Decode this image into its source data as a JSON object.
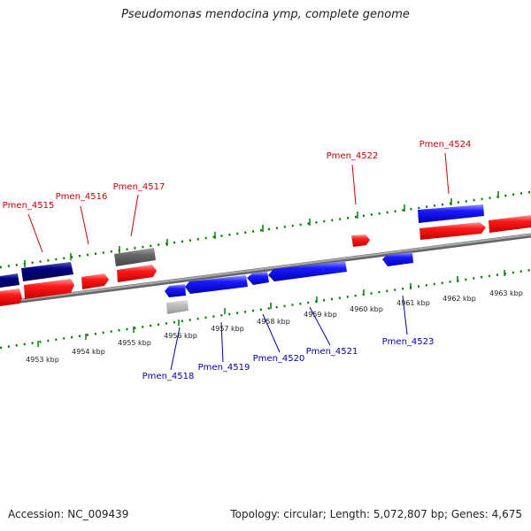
{
  "title": "Pseudomonas mendocina ymp, complete genome",
  "footer": {
    "accession_label": "Accession:",
    "accession": "NC_009439",
    "topology_label": "Topology:",
    "topology": "circular",
    "length_label": "Length:",
    "length": "5,072,807 bp",
    "genes_label": "Genes:",
    "genes": "4,675"
  },
  "colors": {
    "forward_gene": "#ff0000",
    "reverse_gene": "#0000ff",
    "forward_dark": "#000080",
    "pseudo_gene": "#666666",
    "pseudo_gene_light": "#bbbbbb",
    "forward_label": "#cc0000",
    "reverse_label": "#0000aa",
    "tick": "#008000",
    "backbone": "#888888"
  },
  "kbp_labels": [
    "4953 kbp",
    "4954 kbp",
    "4955 kbp",
    "4956 kbp",
    "4957 kbp",
    "4958 kbp",
    "4959 kbp",
    "4960 kbp",
    "4961 kbp",
    "4962 kbp",
    "4963 kbp"
  ],
  "gene_labels_forward": [
    "Pmen_4515",
    "Pmen_4516",
    "Pmen_4517",
    "Pmen_4522",
    "Pmen_4524"
  ],
  "gene_labels_reverse": [
    "Pmen_4518",
    "Pmen_4519",
    "Pmen_4520",
    "Pmen_4521",
    "Pmen_4523"
  ]
}
